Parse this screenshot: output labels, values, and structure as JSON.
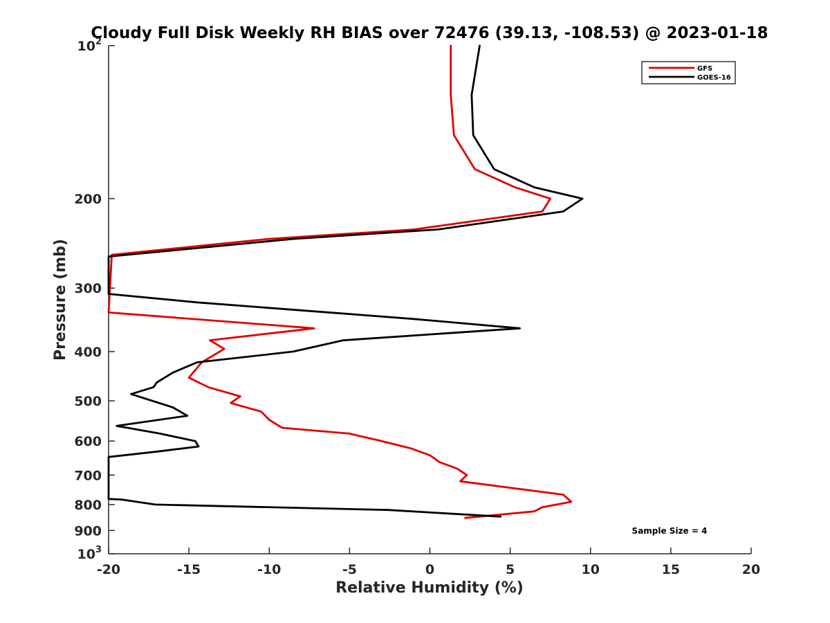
{
  "chart_data": {
    "type": "line",
    "title": "Cloudy Full Disk Weekly RH BIAS over 72476 (39.13, -108.53) @ 2023-01-18",
    "xlabel": "Relative Humidity (%)",
    "ylabel": "Pressure (mb)",
    "xlim": [
      -20,
      20
    ],
    "ylim": [
      1000,
      100
    ],
    "y_scale": "log",
    "y_reversed": true,
    "grid": false,
    "legend_position": "top-right",
    "x_ticks": [
      -20,
      -15,
      -10,
      -5,
      0,
      5,
      10,
      15,
      20
    ],
    "y_ticks": [
      {
        "value": 100,
        "label": "10",
        "sup": "2"
      },
      {
        "value": 200,
        "label": "200",
        "sup": ""
      },
      {
        "value": 300,
        "label": "300",
        "sup": ""
      },
      {
        "value": 400,
        "label": "400",
        "sup": ""
      },
      {
        "value": 500,
        "label": "500",
        "sup": ""
      },
      {
        "value": 600,
        "label": "600",
        "sup": ""
      },
      {
        "value": 700,
        "label": "700",
        "sup": ""
      },
      {
        "value": 800,
        "label": "800",
        "sup": ""
      },
      {
        "value": 900,
        "label": "900",
        "sup": ""
      },
      {
        "value": 1000,
        "label": "10",
        "sup": "3"
      }
    ],
    "annotation": "Sample Size = 4",
    "series": [
      {
        "name": "GFS",
        "color": "#e00000",
        "points": [
          [
            1.3,
            100
          ],
          [
            1.3,
            125
          ],
          [
            1.5,
            150
          ],
          [
            2.8,
            175
          ],
          [
            5.3,
            190
          ],
          [
            7.5,
            200
          ],
          [
            7.0,
            212
          ],
          [
            -1.0,
            230
          ],
          [
            -10.0,
            240
          ],
          [
            -19.8,
            258
          ],
          [
            -20.0,
            335
          ],
          [
            -7.2,
            360
          ],
          [
            -13.7,
            380
          ],
          [
            -12.8,
            395
          ],
          [
            -14.2,
            420
          ],
          [
            -15.0,
            450
          ],
          [
            -13.8,
            470
          ],
          [
            -11.8,
            490
          ],
          [
            -12.4,
            505
          ],
          [
            -10.5,
            525
          ],
          [
            -10.0,
            545
          ],
          [
            -9.2,
            565
          ],
          [
            -5.0,
            580
          ],
          [
            -3.0,
            600
          ],
          [
            -1.2,
            620
          ],
          [
            0.0,
            640
          ],
          [
            0.6,
            660
          ],
          [
            1.7,
            680
          ],
          [
            2.3,
            700
          ],
          [
            1.9,
            720
          ],
          [
            8.3,
            765
          ],
          [
            8.8,
            790
          ],
          [
            7.0,
            810
          ],
          [
            6.5,
            825
          ],
          [
            2.2,
            850
          ]
        ]
      },
      {
        "name": "GOES-16",
        "color": "#000000",
        "points": [
          [
            3.1,
            100
          ],
          [
            2.6,
            125
          ],
          [
            2.7,
            150
          ],
          [
            4.0,
            175
          ],
          [
            6.5,
            190
          ],
          [
            9.5,
            200
          ],
          [
            8.3,
            212
          ],
          [
            0.5,
            230
          ],
          [
            -8.5,
            240
          ],
          [
            -20.0,
            260
          ],
          [
            -20.0,
            308
          ],
          [
            -14.5,
            320
          ],
          [
            -1.0,
            345
          ],
          [
            5.6,
            360
          ],
          [
            -5.4,
            380
          ],
          [
            -8.5,
            400
          ],
          [
            -14.5,
            420
          ],
          [
            -16.0,
            440
          ],
          [
            -17.0,
            460
          ],
          [
            -17.2,
            470
          ],
          [
            -18.6,
            485
          ],
          [
            -16.0,
            515
          ],
          [
            -15.1,
            535
          ],
          [
            -19.5,
            560
          ],
          [
            -16.8,
            580
          ],
          [
            -14.6,
            600
          ],
          [
            -14.4,
            615
          ],
          [
            -17.1,
            630
          ],
          [
            -20.0,
            645
          ],
          [
            -20.0,
            780
          ],
          [
            -19.2,
            782
          ],
          [
            -17.1,
            800
          ],
          [
            -2.6,
            820
          ],
          [
            4.4,
            845
          ]
        ]
      }
    ]
  }
}
